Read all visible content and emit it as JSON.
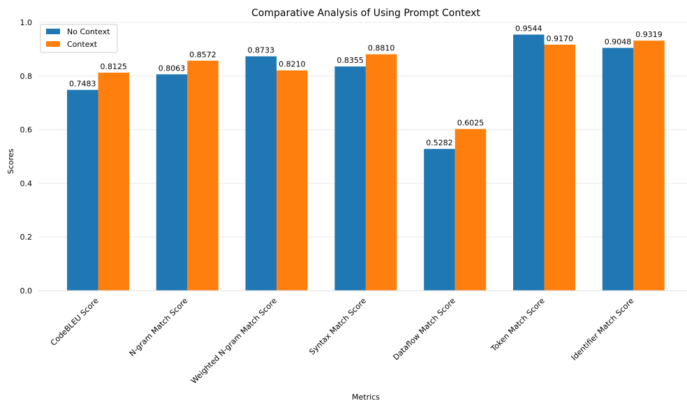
{
  "chart_data": {
    "type": "bar",
    "title": "Comparative Analysis of Using Prompt Context",
    "xlabel": "Metrics",
    "ylabel": "Scores",
    "ylim": [
      0,
      1.0
    ],
    "yticks": [
      "0.0",
      "0.2",
      "0.4",
      "0.6",
      "0.8",
      "1.0"
    ],
    "grid": true,
    "legend_position": "top-left",
    "categories": [
      "CodeBLEU Score",
      "N-gram Match Score",
      "Weighted N-gram Match Score",
      "Syntax Match Score",
      "Dataflow Match Score",
      "Token Match Score",
      "Identifier Match Score"
    ],
    "series": [
      {
        "name": "No Context",
        "color": "#1f77b4",
        "values": [
          0.7483,
          0.8063,
          0.8733,
          0.8355,
          0.5282,
          0.9544,
          0.9048
        ],
        "labels": [
          "0.7483",
          "0.8063",
          "0.8733",
          "0.8355",
          "0.5282",
          "0.9544",
          "0.9048"
        ]
      },
      {
        "name": "Context",
        "color": "#ff7f0e",
        "values": [
          0.8125,
          0.8572,
          0.821,
          0.881,
          0.6025,
          0.917,
          0.9319
        ],
        "labels": [
          "0.8125",
          "0.8572",
          "0.8210",
          "0.8810",
          "0.6025",
          "0.9170",
          "0.9319"
        ]
      }
    ]
  }
}
